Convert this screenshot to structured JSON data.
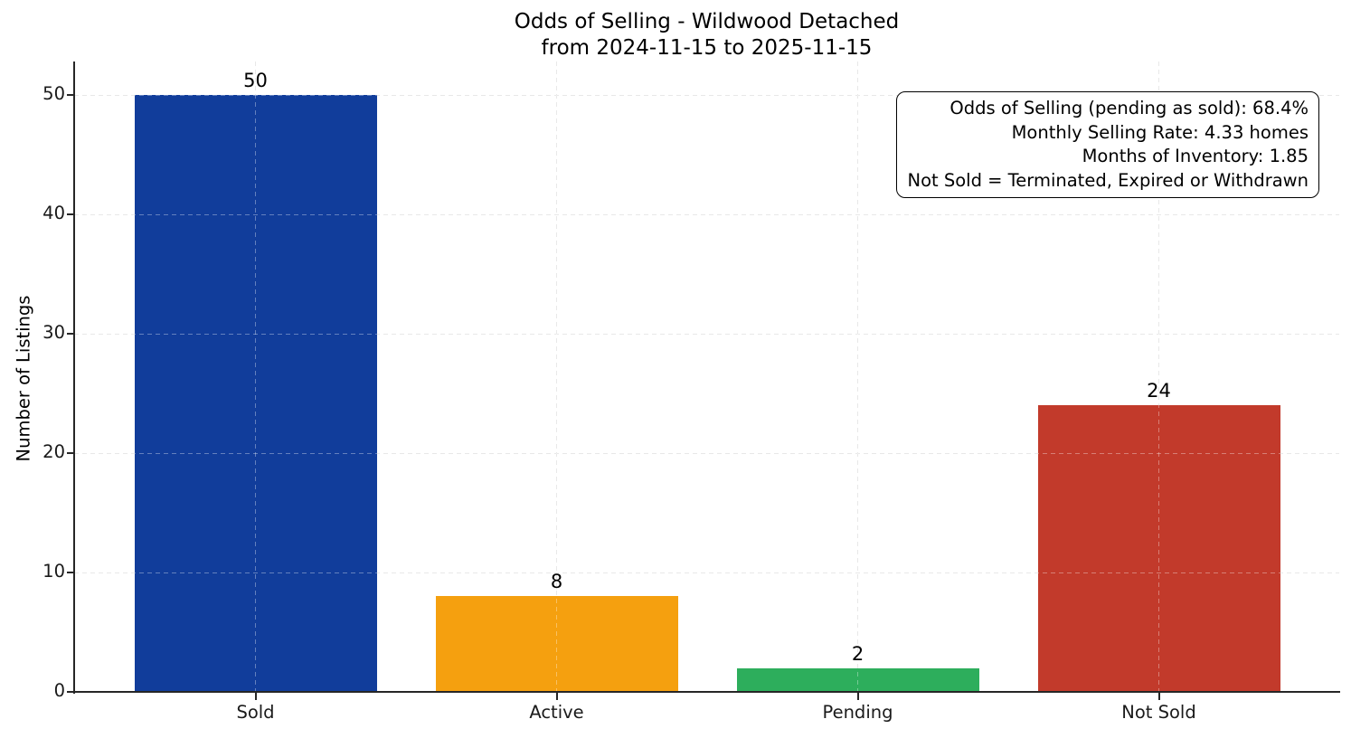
{
  "chart_data": {
    "type": "bar",
    "title": "Odds of Selling - Wildwood Detached",
    "subtitle": "from 2024-11-15 to 2025-11-15",
    "categories": [
      "Sold",
      "Active",
      "Pending",
      "Not Sold"
    ],
    "values": [
      50,
      8,
      2,
      24
    ],
    "bar_colors": [
      "#113d9b",
      "#f5a00f",
      "#2dae5c",
      "#c23a2b"
    ],
    "value_labels": [
      "50",
      "8",
      "2",
      "24"
    ],
    "xlabel": "",
    "ylabel": "Number of Listings",
    "yticks": [
      "0",
      "10",
      "20",
      "30",
      "40",
      "50"
    ],
    "ytick_values": [
      0,
      10,
      20,
      30,
      40,
      50
    ],
    "ylim": [
      0,
      52.8
    ],
    "grid": "dashed light-gray gridlines on both axes",
    "legend": "none",
    "annotation_lines": [
      "Odds of Selling (pending as sold): 68.4%",
      "Monthly Selling Rate: 4.33 homes",
      "Months of Inventory: 1.85",
      "Not Sold = Terminated, Expired or Withdrawn"
    ]
  },
  "colors": {
    "background": "#ffffff",
    "axis": "#262626",
    "grid": "#dcdcdc",
    "text": "#000000",
    "annotation_border": "#000000"
  }
}
